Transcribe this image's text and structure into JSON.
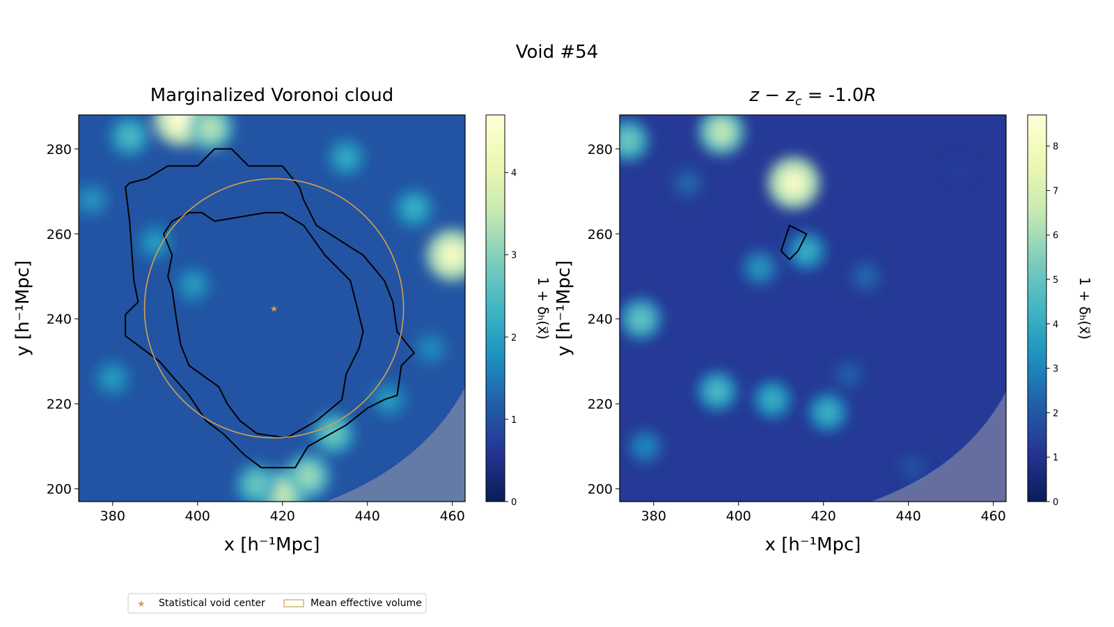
{
  "figure": {
    "suptitle": "Void #54",
    "legend": {
      "placement": "bottom-left",
      "entries": [
        {
          "label": "Statistical void center",
          "marker": "star",
          "color": "#c8a24a"
        },
        {
          "label": "Mean effective volume",
          "marker": "rectangle-outline",
          "color": "#c8a24a"
        }
      ]
    }
  },
  "chart_data": [
    {
      "type": "heatmap",
      "title": "Marginalized Voronoi cloud",
      "xlabel": "x [h⁻¹Mpc]",
      "ylabel": "y [h⁻¹Mpc]",
      "xlim": [
        372,
        463
      ],
      "ylim": [
        197,
        288
      ],
      "xticks": [
        380,
        400,
        420,
        440,
        460
      ],
      "yticks": [
        200,
        220,
        240,
        260,
        280
      ],
      "colormap": "YlGnBu",
      "colorbar": {
        "label": "1 + δₕ(x⃗)",
        "range": [
          0,
          4.7
        ],
        "ticks": [
          0,
          1,
          2,
          3,
          4
        ]
      },
      "void_center": {
        "x": 418,
        "y": 242.5
      },
      "effective_radius": 30.5,
      "effective_circle_color": "#d4a24a",
      "contours": [
        [
          [
            384,
            272
          ],
          [
            388,
            273
          ],
          [
            393,
            276
          ],
          [
            400,
            276
          ],
          [
            404,
            280
          ],
          [
            408,
            280
          ],
          [
            412,
            276
          ],
          [
            420,
            276
          ],
          [
            424,
            271
          ],
          [
            425,
            268
          ],
          [
            428,
            262
          ],
          [
            439,
            255
          ],
          [
            444,
            249
          ],
          [
            446,
            244
          ],
          [
            447,
            237
          ],
          [
            451,
            232
          ],
          [
            448,
            229
          ],
          [
            447,
            222
          ],
          [
            444,
            221
          ],
          [
            440,
            219
          ],
          [
            435,
            215
          ],
          [
            426,
            210
          ],
          [
            423,
            205
          ],
          [
            415,
            205
          ],
          [
            411,
            208
          ],
          [
            406,
            213
          ],
          [
            402,
            216
          ],
          [
            398,
            222
          ],
          [
            391,
            230
          ],
          [
            383,
            236
          ],
          [
            383,
            241
          ],
          [
            386,
            244
          ],
          [
            385,
            249
          ],
          [
            384,
            263
          ],
          [
            383,
            271
          ],
          [
            384,
            272
          ]
        ],
        [
          [
            392,
            260
          ],
          [
            394,
            263
          ],
          [
            398,
            265
          ],
          [
            401,
            265
          ],
          [
            404,
            263
          ],
          [
            410,
            264
          ],
          [
            416,
            265
          ],
          [
            420,
            265
          ],
          [
            425,
            262
          ],
          [
            430,
            255
          ],
          [
            436,
            249
          ],
          [
            438,
            241
          ],
          [
            439,
            237
          ],
          [
            438,
            233
          ],
          [
            435,
            227
          ],
          [
            434,
            221
          ],
          [
            428,
            216
          ],
          [
            421,
            212
          ],
          [
            414,
            213
          ],
          [
            410,
            216
          ],
          [
            407,
            220
          ],
          [
            405,
            224
          ],
          [
            398,
            229
          ],
          [
            396,
            234
          ],
          [
            395,
            240
          ],
          [
            394,
            247
          ],
          [
            393,
            250
          ],
          [
            394,
            255
          ],
          [
            392,
            260
          ]
        ]
      ],
      "survey_mask": {
        "edge_from": [
          430,
          197
        ],
        "edge_to": [
          463,
          224
        ]
      },
      "density_features": [
        {
          "x": 396,
          "y": 287,
          "value": 4.6
        },
        {
          "x": 403,
          "y": 285,
          "value": 3.4
        },
        {
          "x": 384,
          "y": 283,
          "value": 2.5
        },
        {
          "x": 460,
          "y": 255,
          "value": 4.4
        },
        {
          "x": 451,
          "y": 266,
          "value": 2.3
        },
        {
          "x": 420,
          "y": 199,
          "value": 3.6
        },
        {
          "x": 426,
          "y": 203,
          "value": 3.2
        },
        {
          "x": 414,
          "y": 201,
          "value": 2.8
        },
        {
          "x": 432,
          "y": 213,
          "value": 2.8
        },
        {
          "x": 390,
          "y": 258,
          "value": 2.0
        },
        {
          "x": 399,
          "y": 248,
          "value": 2.0
        },
        {
          "x": 435,
          "y": 278,
          "value": 2.2
        },
        {
          "x": 380,
          "y": 226,
          "value": 2.0
        },
        {
          "x": 445,
          "y": 221,
          "value": 2.0
        },
        {
          "x": 455,
          "y": 233,
          "value": 1.8
        },
        {
          "x": 375,
          "y": 268,
          "value": 1.9
        }
      ]
    },
    {
      "type": "heatmap",
      "title": "z − z_c = -1.0R",
      "title_parts": {
        "var": "z",
        "minus": "−",
        "sub_var": "z",
        "sub": "c",
        "rest": " = -1.0",
        "unit": "R"
      },
      "xlabel": "x [h⁻¹Mpc]",
      "ylabel": "y [h⁻¹Mpc]",
      "xlim": [
        372,
        463
      ],
      "ylim": [
        197,
        288
      ],
      "xticks": [
        380,
        400,
        420,
        440,
        460
      ],
      "yticks": [
        200,
        220,
        240,
        260,
        280
      ],
      "colormap": "YlGnBu",
      "colorbar": {
        "label": "1 + δₕ(x⃗)",
        "range": [
          0,
          8.7
        ],
        "ticks": [
          0,
          1,
          2,
          3,
          4,
          5,
          6,
          7,
          8
        ]
      },
      "contours": [
        [
          [
            410,
            256
          ],
          [
            412,
            262
          ],
          [
            416,
            260
          ],
          [
            414,
            256
          ],
          [
            412,
            254
          ],
          [
            410,
            256
          ]
        ]
      ],
      "survey_mask": {
        "edge_from": [
          431,
          197
        ],
        "edge_to": [
          463,
          223
        ]
      },
      "density_features": [
        {
          "x": 413,
          "y": 272,
          "value": 8.2
        },
        {
          "x": 396,
          "y": 284,
          "value": 6.5
        },
        {
          "x": 374,
          "y": 282,
          "value": 5.2
        },
        {
          "x": 377,
          "y": 240,
          "value": 5.0
        },
        {
          "x": 395,
          "y": 223,
          "value": 4.6
        },
        {
          "x": 408,
          "y": 221,
          "value": 4.2
        },
        {
          "x": 421,
          "y": 218,
          "value": 4.3
        },
        {
          "x": 416,
          "y": 256,
          "value": 4.2
        },
        {
          "x": 405,
          "y": 252,
          "value": 3.5
        },
        {
          "x": 388,
          "y": 272,
          "value": 2.5
        },
        {
          "x": 378,
          "y": 210,
          "value": 3.2
        },
        {
          "x": 430,
          "y": 250,
          "value": 2.5
        },
        {
          "x": 441,
          "y": 205,
          "value": 2.0
        },
        {
          "x": 426,
          "y": 227,
          "value": 2.3
        },
        {
          "x": 452,
          "y": 275,
          "value": 1.5
        }
      ]
    }
  ]
}
